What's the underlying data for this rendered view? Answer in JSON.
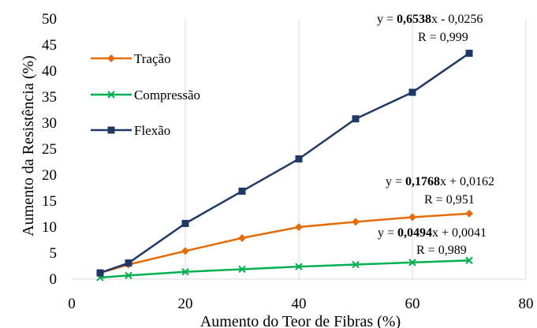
{
  "chart_data": {
    "type": "line",
    "xlabel": "Aumento do Teor de Fibras (%)",
    "ylabel": "Aumento da Resistência (%)",
    "xlim": [
      0,
      80
    ],
    "ylim": [
      0,
      50
    ],
    "x_ticks": [
      "0",
      "20",
      "40",
      "60",
      "80"
    ],
    "y_ticks": [
      "0",
      "5",
      "10",
      "15",
      "20",
      "25",
      "30",
      "35",
      "40",
      "45",
      "50"
    ],
    "grid": "vertical",
    "legend_position": "top-left",
    "series": [
      {
        "name": "Tração",
        "color": "#E46C0A",
        "marker": "diamond",
        "x": [
          5,
          10,
          20,
          30,
          40,
          50,
          60,
          70
        ],
        "y": [
          1.2,
          2.8,
          5.4,
          7.9,
          10.0,
          11.0,
          11.9,
          12.6
        ]
      },
      {
        "name": "Compressão",
        "color": "#00B050",
        "marker": "x",
        "x": [
          5,
          10,
          20,
          30,
          40,
          50,
          60,
          70
        ],
        "y": [
          0.3,
          0.7,
          1.4,
          1.9,
          2.4,
          2.8,
          3.2,
          3.6
        ]
      },
      {
        "name": "Flexão",
        "color": "#1F3864",
        "marker": "square",
        "x": [
          5,
          10,
          20,
          30,
          40,
          50,
          60,
          70
        ],
        "y": [
          1.2,
          3.1,
          10.7,
          16.9,
          23.1,
          30.8,
          35.9,
          43.4
        ]
      }
    ],
    "annotations": [
      {
        "eq_prefix": "y = ",
        "eq_coef": "0,6538",
        "eq_suffix": "x - 0,0256",
        "r_text": "R  = 0,999"
      },
      {
        "eq_prefix": "y = ",
        "eq_coef": "0,1768",
        "eq_suffix": "x + 0,0162",
        "r_text": "R  = 0,951"
      },
      {
        "eq_prefix": "y = ",
        "eq_coef": "0,0494",
        "eq_suffix": "x + 0,0041",
        "r_text": "R  = 0,989"
      }
    ]
  }
}
